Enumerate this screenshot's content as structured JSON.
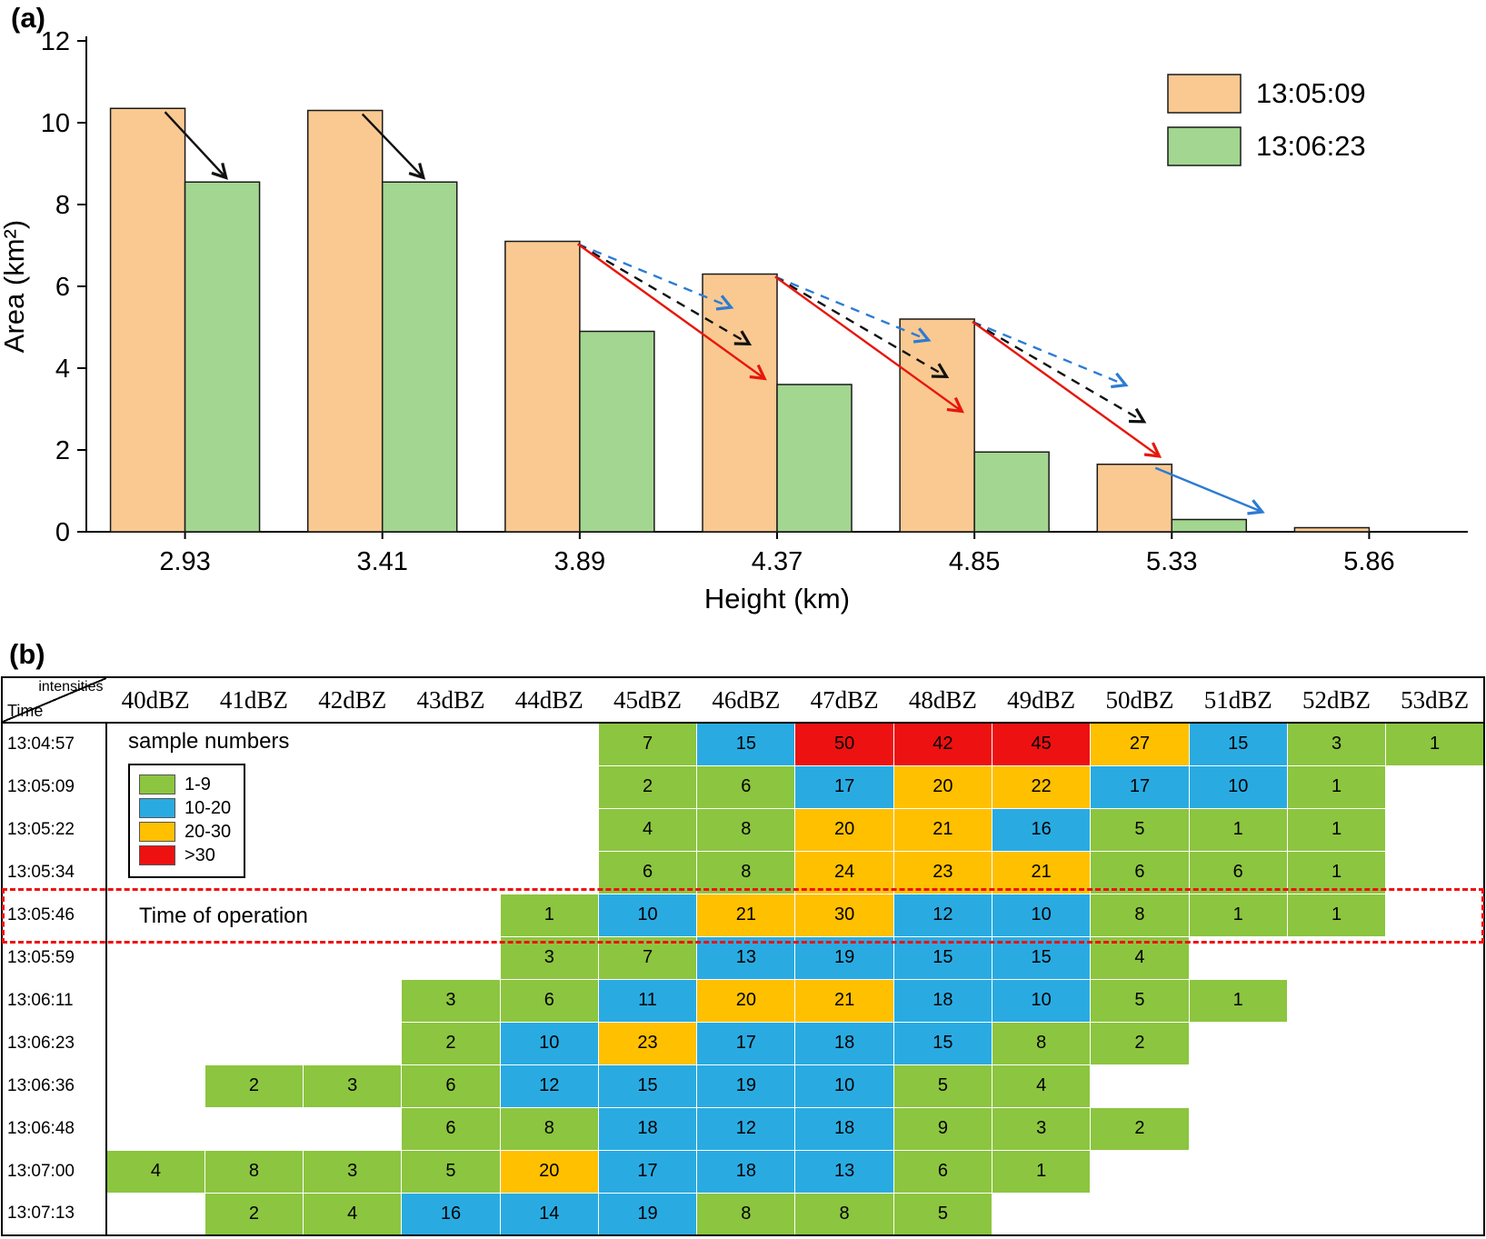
{
  "figure": {
    "panel_a_tag": "(a)",
    "panel_b_tag": "(b)"
  },
  "chart_data": [
    {
      "type": "bar",
      "panel": "a",
      "title": "",
      "xlabel": "Height (km)",
      "ylabel": "Area (km²)",
      "ylim": [
        0,
        12
      ],
      "yticks": [
        0,
        2,
        4,
        6,
        8,
        10,
        12
      ],
      "categories": [
        "2.93",
        "3.41",
        "3.89",
        "4.37",
        "4.85",
        "5.33",
        "5.86"
      ],
      "series": [
        {
          "name": "13:05:09",
          "color": "#F9C991",
          "values": [
            10.35,
            10.3,
            7.1,
            6.3,
            5.2,
            1.65,
            0.1
          ]
        },
        {
          "name": "13:06:23",
          "color": "#A3D690",
          "values": [
            8.55,
            8.55,
            4.9,
            3.6,
            1.95,
            0.3,
            0
          ]
        }
      ],
      "legend_position": "top-right",
      "arrow_colors": {
        "black": "#111111",
        "red": "#E8160C",
        "blue": "#2C7BD4"
      },
      "arrows": [
        {
          "group": 0,
          "color": "black",
          "style": "solid",
          "kind": "to-green"
        },
        {
          "group": 1,
          "color": "black",
          "style": "solid",
          "kind": "to-green"
        },
        {
          "group": 2,
          "color": "blue",
          "style": "dashed",
          "kind": "fan-short"
        },
        {
          "group": 2,
          "color": "black",
          "style": "dashed",
          "kind": "fan-mid"
        },
        {
          "group": 2,
          "color": "red",
          "style": "solid",
          "kind": "fan-long"
        },
        {
          "group": 3,
          "color": "blue",
          "style": "dashed",
          "kind": "fan-short"
        },
        {
          "group": 3,
          "color": "black",
          "style": "dashed",
          "kind": "fan-mid"
        },
        {
          "group": 3,
          "color": "red",
          "style": "solid",
          "kind": "fan-long"
        },
        {
          "group": 4,
          "color": "blue",
          "style": "dashed",
          "kind": "fan-short"
        },
        {
          "group": 4,
          "color": "black",
          "style": "dashed",
          "kind": "fan-mid"
        },
        {
          "group": 4,
          "color": "red",
          "style": "solid",
          "kind": "fan-long"
        },
        {
          "group": 5,
          "color": "blue",
          "style": "solid",
          "kind": "to-green-far"
        }
      ]
    },
    {
      "type": "heatmap",
      "panel": "b",
      "corner": {
        "top": "intensities",
        "bottom": "Time"
      },
      "columns": [
        "40dBZ",
        "41dBZ",
        "42dBZ",
        "43dBZ",
        "44dBZ",
        "45dBZ",
        "46dBZ",
        "47dBZ",
        "48dBZ",
        "49dBZ",
        "50dBZ",
        "51dBZ",
        "52dBZ",
        "53dBZ"
      ],
      "legend": {
        "title": "sample numbers",
        "items": [
          {
            "label": "1-9",
            "color_key": "g"
          },
          {
            "label": "10-20",
            "color_key": "b"
          },
          {
            "label": "20-30",
            "color_key": "o"
          },
          {
            "label": ">30",
            "color_key": "r"
          }
        ]
      },
      "colors": {
        "g": "#8CC540",
        "b": "#29ABE2",
        "o": "#FFC000",
        "r": "#EE1111"
      },
      "operation_label": "Time of operation",
      "operation_row": "13:05:46",
      "rows": [
        {
          "time": "13:04:57",
          "cells": [
            null,
            null,
            null,
            null,
            null,
            [
              7,
              "g"
            ],
            [
              15,
              "b"
            ],
            [
              50,
              "r"
            ],
            [
              42,
              "r"
            ],
            [
              45,
              "r"
            ],
            [
              27,
              "o"
            ],
            [
              15,
              "b"
            ],
            [
              3,
              "g"
            ],
            [
              1,
              "g"
            ]
          ]
        },
        {
          "time": "13:05:09",
          "cells": [
            null,
            null,
            null,
            null,
            null,
            [
              2,
              "g"
            ],
            [
              6,
              "g"
            ],
            [
              17,
              "b"
            ],
            [
              20,
              "o"
            ],
            [
              22,
              "o"
            ],
            [
              17,
              "b"
            ],
            [
              10,
              "b"
            ],
            [
              1,
              "g"
            ],
            null
          ]
        },
        {
          "time": "13:05:22",
          "cells": [
            null,
            null,
            null,
            null,
            null,
            [
              4,
              "g"
            ],
            [
              8,
              "g"
            ],
            [
              20,
              "o"
            ],
            [
              21,
              "o"
            ],
            [
              16,
              "b"
            ],
            [
              5,
              "g"
            ],
            [
              1,
              "g"
            ],
            [
              1,
              "g"
            ],
            null
          ]
        },
        {
          "time": "13:05:34",
          "cells": [
            null,
            null,
            null,
            null,
            null,
            [
              6,
              "g"
            ],
            [
              8,
              "g"
            ],
            [
              24,
              "o"
            ],
            [
              23,
              "o"
            ],
            [
              21,
              "o"
            ],
            [
              6,
              "g"
            ],
            [
              6,
              "g"
            ],
            [
              1,
              "g"
            ],
            null
          ]
        },
        {
          "time": "13:05:46",
          "cells": [
            null,
            null,
            null,
            null,
            [
              1,
              "g"
            ],
            [
              10,
              "b"
            ],
            [
              21,
              "o"
            ],
            [
              30,
              "o"
            ],
            [
              12,
              "b"
            ],
            [
              10,
              "b"
            ],
            [
              8,
              "g"
            ],
            [
              1,
              "g"
            ],
            [
              1,
              "g"
            ],
            null
          ]
        },
        {
          "time": "13:05:59",
          "cells": [
            null,
            null,
            null,
            null,
            [
              3,
              "g"
            ],
            [
              7,
              "g"
            ],
            [
              13,
              "b"
            ],
            [
              19,
              "b"
            ],
            [
              15,
              "b"
            ],
            [
              15,
              "b"
            ],
            [
              4,
              "g"
            ],
            null,
            null,
            null
          ]
        },
        {
          "time": "13:06:11",
          "cells": [
            null,
            null,
            null,
            [
              3,
              "g"
            ],
            [
              6,
              "g"
            ],
            [
              11,
              "b"
            ],
            [
              20,
              "o"
            ],
            [
              21,
              "o"
            ],
            [
              18,
              "b"
            ],
            [
              10,
              "b"
            ],
            [
              5,
              "g"
            ],
            [
              1,
              "g"
            ],
            null,
            null
          ]
        },
        {
          "time": "13:06:23",
          "cells": [
            null,
            null,
            null,
            [
              2,
              "g"
            ],
            [
              10,
              "b"
            ],
            [
              23,
              "o"
            ],
            [
              17,
              "b"
            ],
            [
              18,
              "b"
            ],
            [
              15,
              "b"
            ],
            [
              8,
              "g"
            ],
            [
              2,
              "g"
            ],
            null,
            null,
            null
          ]
        },
        {
          "time": "13:06:36",
          "cells": [
            null,
            [
              2,
              "g"
            ],
            [
              3,
              "g"
            ],
            [
              6,
              "g"
            ],
            [
              12,
              "b"
            ],
            [
              15,
              "b"
            ],
            [
              19,
              "b"
            ],
            [
              10,
              "b"
            ],
            [
              5,
              "g"
            ],
            [
              4,
              "g"
            ],
            null,
            null,
            null,
            null
          ]
        },
        {
          "time": "13:06:48",
          "cells": [
            null,
            null,
            null,
            [
              6,
              "g"
            ],
            [
              8,
              "g"
            ],
            [
              18,
              "b"
            ],
            [
              12,
              "b"
            ],
            [
              18,
              "b"
            ],
            [
              9,
              "g"
            ],
            [
              3,
              "g"
            ],
            [
              2,
              "g"
            ],
            null,
            null,
            null
          ]
        },
        {
          "time": "13:07:00",
          "cells": [
            [
              4,
              "g"
            ],
            [
              8,
              "g"
            ],
            [
              3,
              "g"
            ],
            [
              5,
              "g"
            ],
            [
              20,
              "o"
            ],
            [
              17,
              "b"
            ],
            [
              18,
              "b"
            ],
            [
              13,
              "b"
            ],
            [
              6,
              "g"
            ],
            [
              1,
              "g"
            ],
            null,
            null,
            null,
            null
          ]
        },
        {
          "time": "13:07:13",
          "cells": [
            null,
            [
              2,
              "g"
            ],
            [
              4,
              "g"
            ],
            [
              16,
              "b"
            ],
            [
              14,
              "b"
            ],
            [
              19,
              "b"
            ],
            [
              8,
              "g"
            ],
            [
              8,
              "g"
            ],
            [
              5,
              "g"
            ],
            null,
            null,
            null,
            null,
            null
          ]
        }
      ]
    }
  ]
}
